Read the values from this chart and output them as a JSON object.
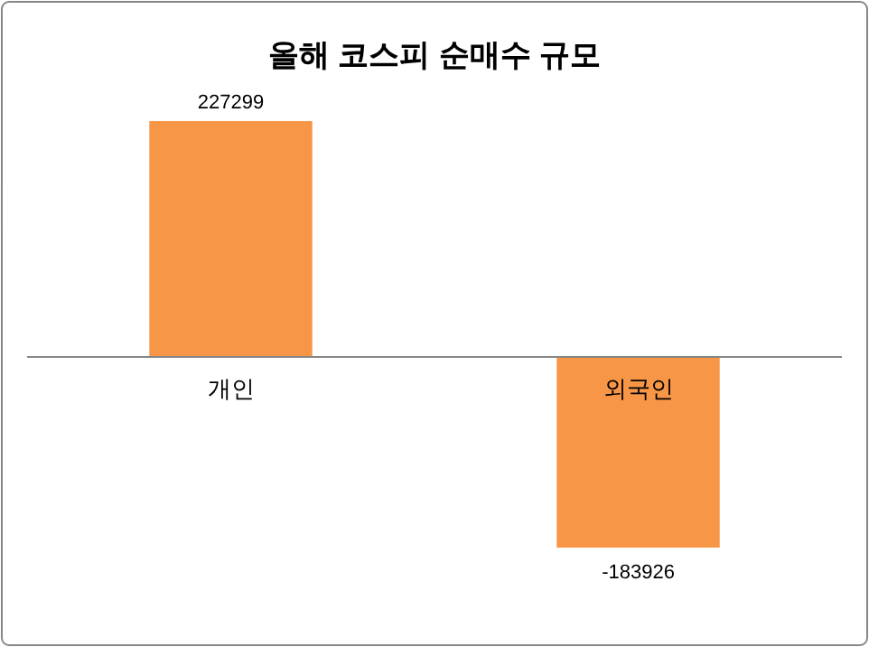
{
  "chart_data": {
    "type": "bar",
    "title": "올해 코스피 순매수 규모",
    "categories": [
      "개인",
      "외국인"
    ],
    "values": [
      227299,
      -183926
    ],
    "color": "#f79646",
    "data_labels": true
  }
}
